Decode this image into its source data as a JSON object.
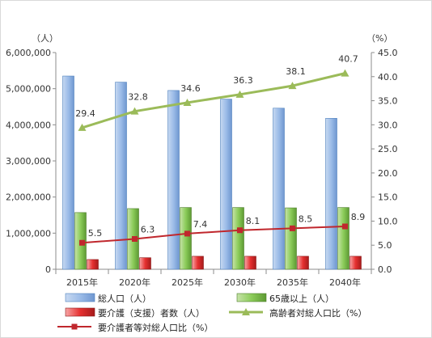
{
  "chart_data": {
    "type": "bar",
    "categories": [
      "2015年",
      "2020年",
      "2025年",
      "2030年",
      "2035年",
      "2040年"
    ],
    "left_axis": {
      "unit": "（人）",
      "ylim": [
        0,
        6000000
      ],
      "ticks": [
        0,
        1000000,
        2000000,
        3000000,
        4000000,
        5000000,
        6000000
      ],
      "tick_labels": [
        "0",
        "1,000,000",
        "2,000,000",
        "3,000,000",
        "4,000,000",
        "5,000,000",
        "6,000,000"
      ]
    },
    "right_axis": {
      "unit": "（%）",
      "ylim": [
        0,
        45
      ],
      "ticks": [
        0,
        5,
        10,
        15,
        20,
        25,
        30,
        35,
        40,
        45
      ],
      "tick_labels": [
        "0.0",
        "5.0",
        "10.0",
        "15.0",
        "20.0",
        "25.0",
        "30.0",
        "35.0",
        "40.0",
        "45.0"
      ]
    },
    "series": [
      {
        "name": "総人口（人）",
        "type": "bar",
        "axis": "left",
        "values": [
          5350000,
          5180000,
          4950000,
          4710000,
          4460000,
          4180000
        ],
        "color": "#8eb4e3"
      },
      {
        "name": "65歳以上（人）",
        "type": "bar",
        "axis": "left",
        "values": [
          1570000,
          1680000,
          1710000,
          1710000,
          1700000,
          1710000
        ],
        "color": "#7fbf4d"
      },
      {
        "name": "要介護（支援）者数（人）",
        "type": "bar",
        "axis": "left",
        "values": [
          270000,
          320000,
          360000,
          360000,
          360000,
          360000
        ],
        "color": "#e63030"
      },
      {
        "name": "高齢者対総人口比（%）",
        "type": "line",
        "axis": "right",
        "values": [
          29.4,
          32.8,
          34.6,
          36.3,
          38.1,
          40.7
        ],
        "labels": [
          "29.4",
          "32.8",
          "34.6",
          "36.3",
          "38.1",
          "40.7"
        ],
        "color": "#9bbb59"
      },
      {
        "name": "要介護者等対総人口比（%）",
        "type": "line",
        "axis": "right",
        "values": [
          5.5,
          6.3,
          7.4,
          8.1,
          8.5,
          8.9
        ],
        "labels": [
          "5.5",
          "6.3",
          "7.4",
          "8.1",
          "8.5",
          "8.9"
        ],
        "color": "#c0272d"
      }
    ],
    "grid": false,
    "legend_position": "bottom"
  }
}
